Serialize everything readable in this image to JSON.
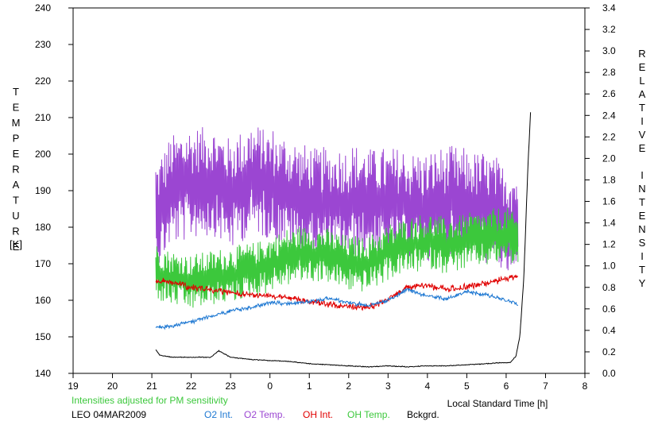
{
  "chart_data": {
    "type": "line",
    "y_left_label": "TEMPERATURE",
    "y_left_unit": "[K]",
    "y_right_label": "RELATIVE INTENSITY",
    "xlabel": "Local Standard Time [h]",
    "note": "Intensities adjusted for PM sensitivity",
    "station_date": "LEO 04MAR2009",
    "x_ticks": [
      19,
      20,
      21,
      22,
      23,
      0,
      1,
      2,
      3,
      4,
      5,
      6,
      7,
      8
    ],
    "y_left_range": [
      140,
      240
    ],
    "y_left_ticks": [
      140,
      150,
      160,
      170,
      180,
      190,
      200,
      210,
      220,
      230,
      240
    ],
    "y_right_range": [
      0.0,
      3.4
    ],
    "y_right_ticks": [
      "0.0",
      "0.2",
      "0.4",
      "0.6",
      "0.8",
      "1.0",
      "1.2",
      "1.4",
      "1.6",
      "1.8",
      "2.0",
      "2.2",
      "2.4",
      "2.6",
      "2.8",
      "3.0",
      "3.2",
      "3.4"
    ],
    "legend": [
      {
        "name": "O2 Int.",
        "color": "#1e78d2"
      },
      {
        "name": "O2 Temp.",
        "color": "#9b46d2"
      },
      {
        "name": "OH Int.",
        "color": "#e00000"
      },
      {
        "name": "OH Temp.",
        "color": "#3cc83c"
      },
      {
        "name": "Bckgrd.",
        "color": "#000000"
      }
    ],
    "series": [
      {
        "name": "O2 Temp.",
        "axis": "left",
        "color": "#9b46d2",
        "x": [
          21.1,
          21.5,
          22.0,
          22.5,
          23.0,
          23.5,
          24.0,
          24.5,
          25.0,
          25.5,
          26.0,
          26.5,
          27.0,
          27.5,
          28.0,
          28.5,
          29.0,
          29.5,
          30.0,
          30.3
        ],
        "y": [
          183,
          190,
          192,
          193,
          189,
          193,
          192,
          189,
          187,
          186,
          187,
          187,
          186,
          186,
          185,
          187,
          186,
          185,
          182,
          181
        ],
        "amp": 14
      },
      {
        "name": "OH Temp.",
        "axis": "left",
        "color": "#3cc83c",
        "x": [
          21.1,
          21.5,
          22.0,
          22.5,
          23.0,
          23.5,
          24.0,
          24.5,
          25.0,
          25.5,
          26.0,
          26.5,
          27.0,
          27.5,
          28.0,
          28.5,
          29.0,
          29.5,
          30.0,
          30.3
        ],
        "y": [
          168,
          166,
          165,
          166,
          167,
          168,
          170,
          172,
          173,
          172,
          170,
          170,
          173,
          175,
          176,
          175,
          176,
          177,
          178,
          176
        ],
        "amp": 7
      },
      {
        "name": "OH Int.",
        "axis": "right",
        "color": "#e00000",
        "x": [
          21.1,
          21.5,
          22.0,
          22.5,
          23.0,
          23.5,
          24.0,
          24.5,
          25.0,
          25.5,
          26.0,
          26.5,
          27.0,
          27.5,
          28.0,
          28.5,
          29.0,
          29.5,
          30.0,
          30.3
        ],
        "y": [
          0.86,
          0.85,
          0.8,
          0.78,
          0.75,
          0.73,
          0.72,
          0.7,
          0.67,
          0.64,
          0.62,
          0.61,
          0.69,
          0.8,
          0.82,
          0.78,
          0.8,
          0.84,
          0.88,
          0.9
        ],
        "amp": 0.03
      },
      {
        "name": "O2 Int.",
        "axis": "right",
        "color": "#1e78d2",
        "x": [
          21.1,
          21.5,
          22.0,
          22.5,
          23.0,
          23.5,
          24.0,
          24.5,
          25.0,
          25.5,
          26.0,
          26.5,
          27.0,
          27.5,
          28.0,
          28.5,
          29.0,
          29.5,
          30.0,
          30.3
        ],
        "y": [
          0.42,
          0.44,
          0.48,
          0.53,
          0.58,
          0.61,
          0.66,
          0.65,
          0.67,
          0.7,
          0.66,
          0.63,
          0.68,
          0.78,
          0.72,
          0.69,
          0.76,
          0.73,
          0.68,
          0.64
        ],
        "amp": 0.02
      },
      {
        "name": "Bckgrd.",
        "axis": "right",
        "color": "#000000",
        "x": [
          21.1,
          21.2,
          21.5,
          22.0,
          22.5,
          22.7,
          23.0,
          23.5,
          24.0,
          24.5,
          25.0,
          25.5,
          26.0,
          26.5,
          27.0,
          27.5,
          28.0,
          28.5,
          29.0,
          29.5,
          29.9,
          30.1,
          30.25,
          30.35,
          30.45,
          30.55,
          30.62
        ],
        "y": [
          0.22,
          0.17,
          0.15,
          0.15,
          0.15,
          0.21,
          0.15,
          0.13,
          0.12,
          0.11,
          0.09,
          0.08,
          0.07,
          0.06,
          0.07,
          0.06,
          0.07,
          0.07,
          0.08,
          0.09,
          0.1,
          0.1,
          0.16,
          0.35,
          0.9,
          1.9,
          2.43
        ],
        "amp": 0.004
      }
    ]
  }
}
